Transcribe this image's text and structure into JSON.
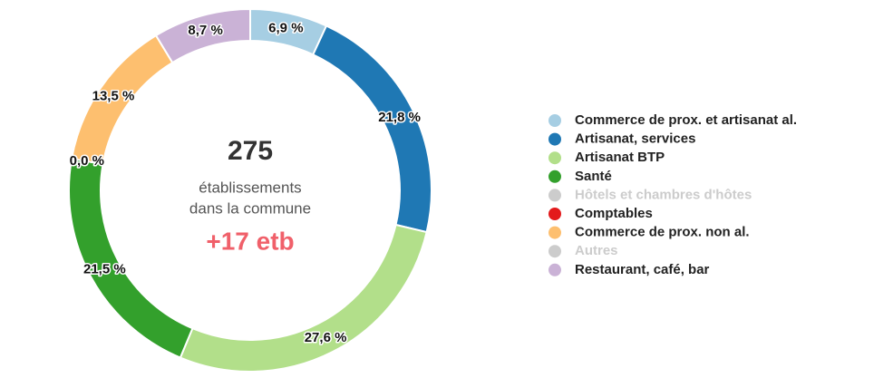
{
  "chart_data": {
    "type": "pie",
    "categories": [
      "Commerce de prox. et artisanat al.",
      "Artisanat, services",
      "Artisanat BTP",
      "Santé",
      "Hôtels et chambres d'hôtes",
      "Comptables",
      "Commerce de prox. non al.",
      "Autres",
      "Restaurant, café, bar"
    ],
    "values": [
      6.9,
      21.8,
      27.6,
      21.5,
      null,
      0,
      13.5,
      null,
      8.7
    ],
    "value_labels": [
      "6,9 %",
      "21,8 %",
      "27,6 %",
      "21,5 %",
      null,
      "0,0 %",
      "13,5 %",
      null,
      "8,7 %"
    ],
    "colors": [
      "#a6cee3",
      "#1f78b4",
      "#b2df8a",
      "#33a02c",
      "#cccccc",
      "#e31a1c",
      "#fdbf6f",
      "#cccccc",
      "#cab2d6"
    ],
    "donut": true,
    "total": 275,
    "total_caption": [
      "établissements",
      "dans la commune"
    ],
    "change": "+17 etb",
    "legend": "right"
  }
}
